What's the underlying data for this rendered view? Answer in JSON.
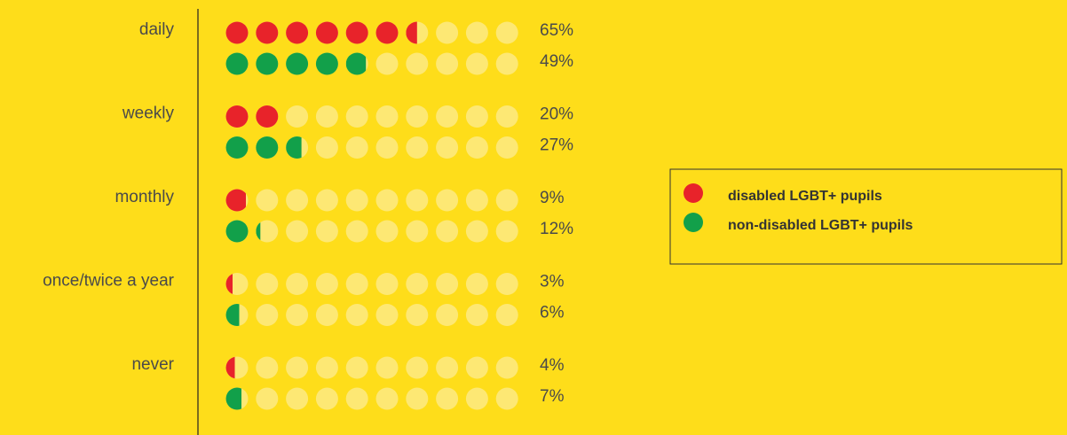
{
  "chart_data": {
    "type": "pictograph",
    "categories": [
      "daily",
      "weekly",
      "monthly",
      "once/twice a year",
      "never"
    ],
    "series": [
      {
        "name": "disabled LGBT+ pupils",
        "color": "#e8232a",
        "values": [
          65,
          20,
          9,
          3,
          4
        ],
        "value_labels": [
          "65%",
          "20%",
          "9%",
          "3%",
          "4%"
        ]
      },
      {
        "name": "non-disabled LGBT+ pupils",
        "color": "#12a04a",
        "values": [
          49,
          27,
          12,
          6,
          7
        ],
        "value_labels": [
          "49%",
          "27%",
          "12%",
          "6%",
          "7%"
        ]
      }
    ],
    "xlim": [
      0,
      100
    ],
    "empty_color": "#fde874",
    "legend": "right"
  }
}
